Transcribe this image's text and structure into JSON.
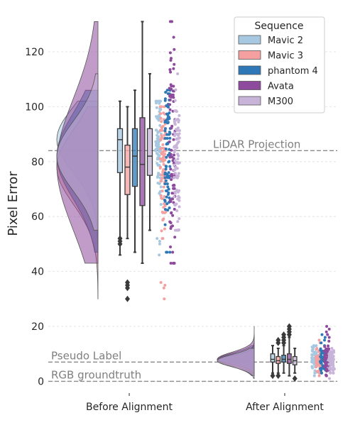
{
  "chart_data": {
    "type": "raincloud",
    "title": "",
    "ylabel": "Pixel Error",
    "xlabel": "",
    "ylim": [
      -2,
      132
    ],
    "yticks": [
      0,
      20,
      40,
      60,
      80,
      100,
      120
    ],
    "grid": "horizontal dashed",
    "categories": [
      "Before Alignment",
      "After Alignment"
    ],
    "legend": {
      "title": "Sequence",
      "placement": "top-right",
      "entries": [
        "Mavic 2",
        "Mavic 3",
        "phantom 4",
        "Avata",
        "M300"
      ]
    },
    "reference_lines": [
      {
        "label": "LiDAR Projection",
        "value": 84
      },
      {
        "label": "Pseudo Label",
        "value": 7
      },
      {
        "label": "RGB groundtruth",
        "value": 0
      }
    ],
    "series": [
      {
        "name": "Mavic 2",
        "color": "#a6c8e0",
        "before": {
          "min": 46,
          "q1": 76,
          "median": 88,
          "q3": 92,
          "max": 102,
          "outliers": [
            52,
            51,
            50
          ]
        },
        "after": {
          "min": 3,
          "q1": 7,
          "median": 8,
          "q3": 10,
          "max": 13,
          "outliers": [
            2
          ]
        }
      },
      {
        "name": "Mavic 3",
        "color": "#f4a0a0",
        "before": {
          "min": 52,
          "q1": 68,
          "median": 78,
          "q3": 86,
          "max": 100,
          "outliers": [
            36,
            35,
            34,
            30
          ]
        },
        "after": {
          "min": 3,
          "q1": 6.5,
          "median": 7.5,
          "q3": 9,
          "max": 12,
          "outliers": [
            2,
            14,
            15
          ]
        }
      },
      {
        "name": "phantom 4",
        "color": "#2e78b7",
        "before": {
          "min": 47,
          "q1": 71,
          "median": 82,
          "q3": 92,
          "max": 106,
          "outliers": []
        },
        "after": {
          "min": 3,
          "q1": 7,
          "median": 8,
          "q3": 9.5,
          "max": 13,
          "outliers": [
            14,
            15,
            16,
            17
          ]
        }
      },
      {
        "name": "Avata",
        "color": "#8e4a9c",
        "before": {
          "min": 43,
          "q1": 64,
          "median": 79,
          "q3": 96,
          "max": 131,
          "outliers": []
        },
        "after": {
          "min": 2,
          "q1": 6.5,
          "median": 8,
          "q3": 10,
          "max": 16,
          "outliers": [
            17,
            18,
            19,
            20
          ]
        }
      },
      {
        "name": "M300",
        "color": "#c8b4d8",
        "before": {
          "min": 55,
          "q1": 75,
          "median": 82,
          "q3": 92,
          "max": 112,
          "outliers": []
        },
        "after": {
          "min": 3,
          "q1": 6,
          "median": 7.5,
          "q3": 9,
          "max": 12,
          "outliers": [
            1
          ]
        }
      }
    ]
  }
}
